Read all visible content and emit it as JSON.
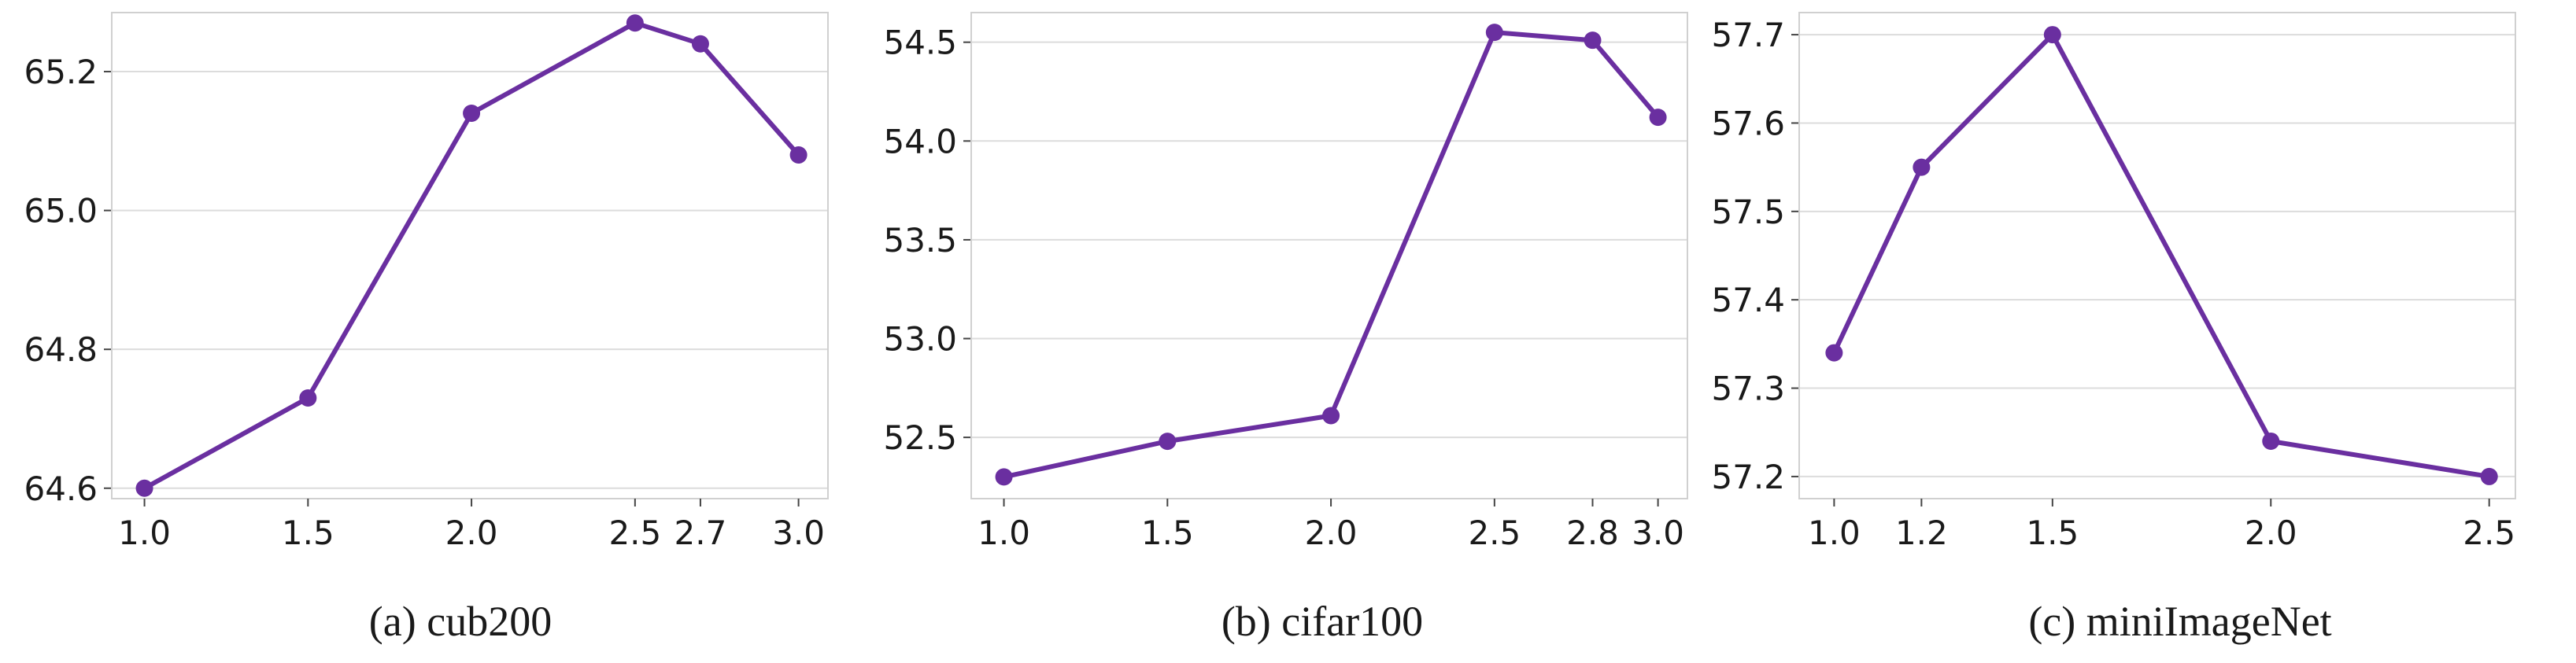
{
  "colors": {
    "line": "#6a2fa0",
    "grid": "#dcdcdc",
    "frame": "#d0d0d0",
    "text": "#1a1a1a"
  },
  "chart_data": [
    {
      "type": "line",
      "caption": "(a) cub200",
      "x": [
        1.0,
        1.5,
        2.0,
        2.5,
        2.7,
        3.0
      ],
      "y": [
        64.6,
        64.73,
        65.14,
        65.27,
        65.24,
        65.08
      ],
      "xlim": [
        0.9,
        3.09
      ],
      "ylim": [
        64.585,
        65.285
      ],
      "xticks": [
        1.0,
        1.5,
        2.0,
        2.5,
        2.7,
        3.0
      ],
      "xtick_labels": [
        "1.0",
        "1.5",
        "2.0",
        "2.5",
        "2.7",
        "3.0"
      ],
      "yticks": [
        64.6,
        64.8,
        65.0,
        65.2
      ],
      "ytick_labels": [
        "64.6",
        "64.8",
        "65.0",
        "65.2"
      ],
      "grid": "y"
    },
    {
      "type": "line",
      "caption": "(b) cifar100",
      "x": [
        1.0,
        1.5,
        2.0,
        2.5,
        2.8,
        3.0
      ],
      "y": [
        52.3,
        52.48,
        52.61,
        54.55,
        54.51,
        54.12
      ],
      "xlim": [
        0.9,
        3.09
      ],
      "ylim": [
        52.19,
        54.65
      ],
      "xticks": [
        1.0,
        1.5,
        2.0,
        2.5,
        2.8,
        3.0
      ],
      "xtick_labels": [
        "1.0",
        "1.5",
        "2.0",
        "2.5",
        "2.8",
        "3.0"
      ],
      "yticks": [
        52.5,
        53.0,
        53.5,
        54.0,
        54.5
      ],
      "ytick_labels": [
        "52.5",
        "53.0",
        "53.5",
        "54.0",
        "54.5"
      ],
      "grid": "y"
    },
    {
      "type": "line",
      "caption": "(c) miniImageNet",
      "x": [
        1.0,
        1.2,
        1.5,
        2.0,
        2.5
      ],
      "y": [
        57.34,
        57.55,
        57.7,
        57.24,
        57.2
      ],
      "xlim": [
        0.92,
        2.56
      ],
      "ylim": [
        57.175,
        57.725
      ],
      "xticks": [
        1.0,
        1.2,
        1.5,
        2.0,
        2.5
      ],
      "xtick_labels": [
        "1.0",
        "1.2",
        "1.5",
        "2.0",
        "2.5"
      ],
      "yticks": [
        57.2,
        57.3,
        57.4,
        57.5,
        57.6,
        57.7
      ],
      "ytick_labels": [
        "57.2",
        "57.3",
        "57.4",
        "57.5",
        "57.6",
        "57.7"
      ],
      "grid": "y"
    }
  ]
}
